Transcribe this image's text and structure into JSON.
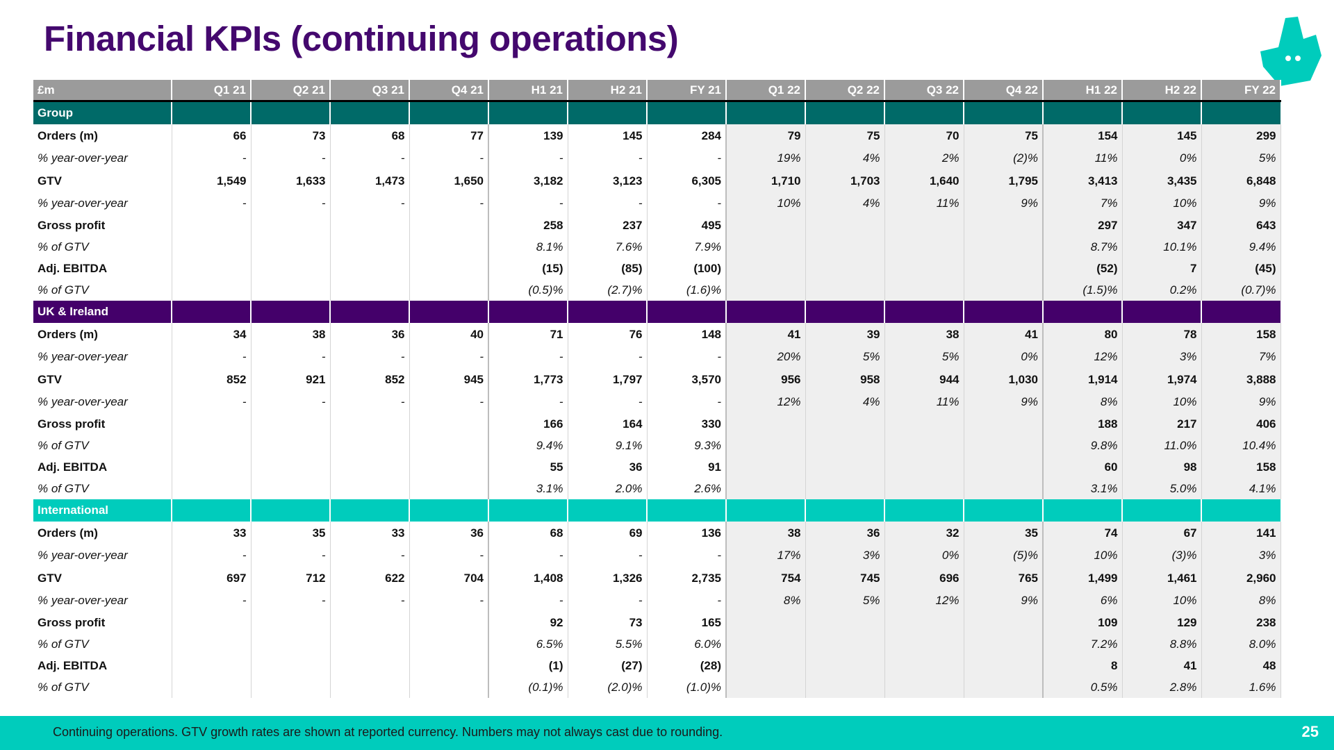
{
  "title": "Financial KPIs (continuing operations)",
  "colors": {
    "title": "#44086e",
    "group": "#006a68",
    "uk": "#44006a",
    "international": "#00ccbc",
    "header": "#9b9b9b"
  },
  "logo_icon": "deliveroo-kangaroo-icon",
  "table": {
    "columns": [
      "£m",
      "Q1 21",
      "Q2 21",
      "Q3 21",
      "Q4 21",
      "H1 21",
      "H2 21",
      "FY 21",
      "Q1 22",
      "Q2 22",
      "Q3 22",
      "Q4 22",
      "H1 22",
      "H2 22",
      "FY 22"
    ],
    "sections": [
      {
        "name": "Group",
        "rows": [
          {
            "label": "Orders (m)",
            "style": "bold",
            "values": [
              "66",
              "73",
              "68",
              "77",
              "139",
              "145",
              "284",
              "79",
              "75",
              "70",
              "75",
              "154",
              "145",
              "299"
            ]
          },
          {
            "label": "% year-over-year",
            "style": "italic",
            "values": [
              "-",
              "-",
              "-",
              "-",
              "-",
              "-",
              "-",
              "19%",
              "4%",
              "2%",
              "(2)%",
              "11%",
              "0%",
              "5%"
            ]
          },
          {
            "label": "GTV",
            "style": "bold",
            "values": [
              "1,549",
              "1,633",
              "1,473",
              "1,650",
              "3,182",
              "3,123",
              "6,305",
              "1,710",
              "1,703",
              "1,640",
              "1,795",
              "3,413",
              "3,435",
              "6,848"
            ]
          },
          {
            "label": "% year-over-year",
            "style": "italic",
            "values": [
              "-",
              "-",
              "-",
              "-",
              "-",
              "-",
              "-",
              "10%",
              "4%",
              "11%",
              "9%",
              "7%",
              "10%",
              "9%"
            ]
          },
          {
            "label": "Gross profit",
            "style": "bold",
            "values": [
              "",
              "",
              "",
              "",
              "258",
              "237",
              "495",
              "",
              "",
              "",
              "",
              "297",
              "347",
              "643"
            ]
          },
          {
            "label": "% of GTV",
            "style": "italic",
            "values": [
              "",
              "",
              "",
              "",
              "8.1%",
              "7.6%",
              "7.9%",
              "",
              "",
              "",
              "",
              "8.7%",
              "10.1%",
              "9.4%"
            ]
          },
          {
            "label": "Adj. EBITDA",
            "style": "bold",
            "values": [
              "",
              "",
              "",
              "",
              "(15)",
              "(85)",
              "(100)",
              "",
              "",
              "",
              "",
              "(52)",
              "7",
              "(45)"
            ]
          },
          {
            "label": "% of GTV",
            "style": "italic",
            "values": [
              "",
              "",
              "",
              "",
              "(0.5)%",
              "(2.7)%",
              "(1.6)%",
              "",
              "",
              "",
              "",
              "(1.5)%",
              "0.2%",
              "(0.7)%"
            ]
          }
        ]
      },
      {
        "name": "UK & Ireland",
        "rows": [
          {
            "label": "Orders (m)",
            "style": "bold",
            "values": [
              "34",
              "38",
              "36",
              "40",
              "71",
              "76",
              "148",
              "41",
              "39",
              "38",
              "41",
              "80",
              "78",
              "158"
            ]
          },
          {
            "label": "% year-over-year",
            "style": "italic",
            "values": [
              "-",
              "-",
              "-",
              "-",
              "-",
              "-",
              "-",
              "20%",
              "5%",
              "5%",
              "0%",
              "12%",
              "3%",
              "7%"
            ]
          },
          {
            "label": "GTV",
            "style": "bold",
            "values": [
              "852",
              "921",
              "852",
              "945",
              "1,773",
              "1,797",
              "3,570",
              "956",
              "958",
              "944",
              "1,030",
              "1,914",
              "1,974",
              "3,888"
            ]
          },
          {
            "label": "% year-over-year",
            "style": "italic",
            "values": [
              "-",
              "-",
              "-",
              "-",
              "-",
              "-",
              "-",
              "12%",
              "4%",
              "11%",
              "9%",
              "8%",
              "10%",
              "9%"
            ]
          },
          {
            "label": "Gross profit",
            "style": "bold",
            "values": [
              "",
              "",
              "",
              "",
              "166",
              "164",
              "330",
              "",
              "",
              "",
              "",
              "188",
              "217",
              "406"
            ]
          },
          {
            "label": "% of GTV",
            "style": "italic",
            "values": [
              "",
              "",
              "",
              "",
              "9.4%",
              "9.1%",
              "9.3%",
              "",
              "",
              "",
              "",
              "9.8%",
              "11.0%",
              "10.4%"
            ]
          },
          {
            "label": "Adj. EBITDA",
            "style": "bold",
            "values": [
              "",
              "",
              "",
              "",
              "55",
              "36",
              "91",
              "",
              "",
              "",
              "",
              "60",
              "98",
              "158"
            ]
          },
          {
            "label": "% of GTV",
            "style": "italic",
            "values": [
              "",
              "",
              "",
              "",
              "3.1%",
              "2.0%",
              "2.6%",
              "",
              "",
              "",
              "",
              "3.1%",
              "5.0%",
              "4.1%"
            ]
          }
        ]
      },
      {
        "name": "International",
        "rows": [
          {
            "label": "Orders (m)",
            "style": "bold",
            "values": [
              "33",
              "35",
              "33",
              "36",
              "68",
              "69",
              "136",
              "38",
              "36",
              "32",
              "35",
              "74",
              "67",
              "141"
            ]
          },
          {
            "label": "% year-over-year",
            "style": "italic",
            "values": [
              "-",
              "-",
              "-",
              "-",
              "-",
              "-",
              "-",
              "17%",
              "3%",
              "0%",
              "(5)%",
              "10%",
              "(3)%",
              "3%"
            ]
          },
          {
            "label": "GTV",
            "style": "bold",
            "values": [
              "697",
              "712",
              "622",
              "704",
              "1,408",
              "1,326",
              "2,735",
              "754",
              "745",
              "696",
              "765",
              "1,499",
              "1,461",
              "2,960"
            ]
          },
          {
            "label": "% year-over-year",
            "style": "italic",
            "values": [
              "-",
              "-",
              "-",
              "-",
              "-",
              "-",
              "-",
              "8%",
              "5%",
              "12%",
              "9%",
              "6%",
              "10%",
              "8%"
            ]
          },
          {
            "label": "Gross profit",
            "style": "bold",
            "values": [
              "",
              "",
              "",
              "",
              "92",
              "73",
              "165",
              "",
              "",
              "",
              "",
              "109",
              "129",
              "238"
            ]
          },
          {
            "label": "% of GTV",
            "style": "italic",
            "values": [
              "",
              "",
              "",
              "",
              "6.5%",
              "5.5%",
              "6.0%",
              "",
              "",
              "",
              "",
              "7.2%",
              "8.8%",
              "8.0%"
            ]
          },
          {
            "label": "Adj. EBITDA",
            "style": "bold",
            "values": [
              "",
              "",
              "",
              "",
              "(1)",
              "(27)",
              "(28)",
              "",
              "",
              "",
              "",
              "8",
              "41",
              "48"
            ]
          },
          {
            "label": "% of GTV",
            "style": "italic",
            "values": [
              "",
              "",
              "",
              "",
              "(0.1)%",
              "(2.0)%",
              "(1.0)%",
              "",
              "",
              "",
              "",
              "0.5%",
              "2.8%",
              "1.6%"
            ]
          }
        ]
      }
    ]
  },
  "footer": {
    "note": "Continuing operations. GTV growth rates are shown at reported currency. Numbers may not always cast due to rounding.",
    "page_number": "25"
  }
}
